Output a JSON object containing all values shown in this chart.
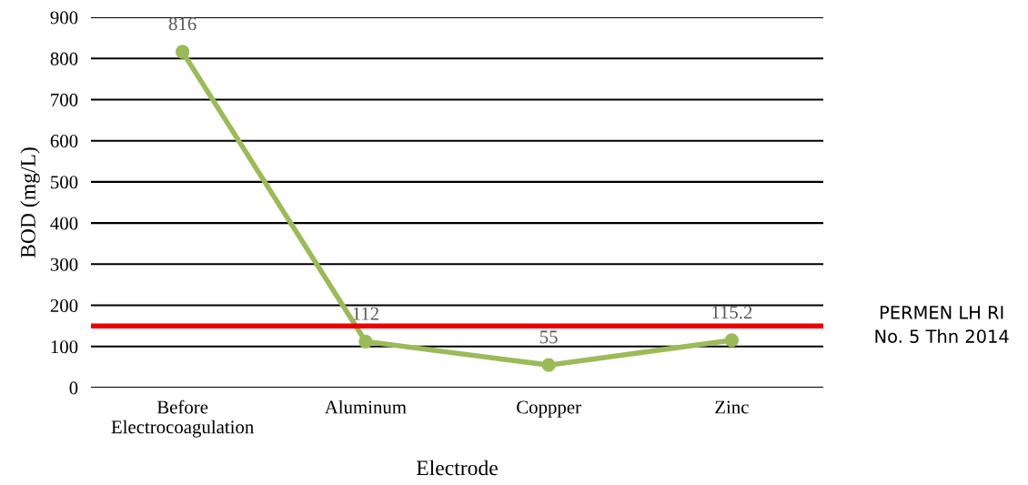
{
  "chart_data": {
    "type": "line",
    "xlabel": "Electrode",
    "ylabel": "BOD (mg/L)",
    "categories": [
      "Before\nElectrocoagulation",
      "Aluminum",
      "Coppper",
      "Zinc"
    ],
    "series": [
      {
        "color": "#9bbb59",
        "values": [
          816,
          112,
          55,
          115.2
        ]
      }
    ],
    "data_labels": true,
    "marker": "circle",
    "line_style": "solid",
    "ylim": [
      0,
      900
    ],
    "yticks": [
      0,
      100,
      200,
      300,
      400,
      500,
      600,
      700,
      800,
      900
    ],
    "grid": "y",
    "ref_lines": [
      {
        "axis": "y",
        "value": 150,
        "label": "PERMEN LH RI\nNo. 5 Thn 2014",
        "color": "#ee0000"
      }
    ]
  }
}
